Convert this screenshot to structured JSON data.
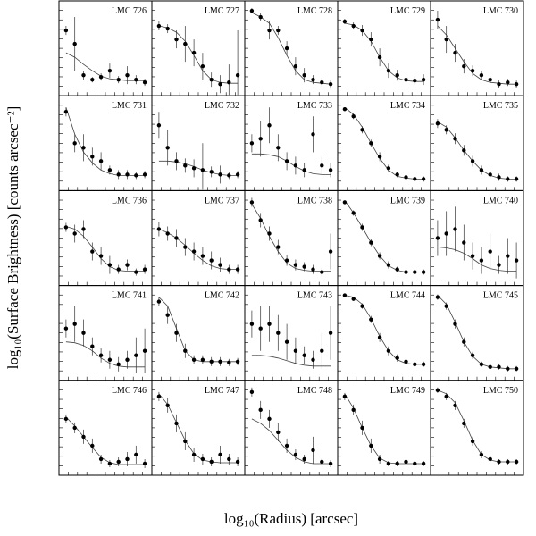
{
  "chart_data": {
    "type": "scatter",
    "xlabel": "log₁₀(Radius) [arcsec]",
    "ylabel": "log₁₀(Surface Brightness) [counts arcsec⁻²]",
    "x": [
      0.05,
      0.15,
      0.25,
      0.35,
      0.45,
      0.55,
      0.65,
      0.75,
      0.85,
      0.95
    ],
    "xlim": [
      0,
      1
    ],
    "ylim": [
      0,
      1
    ],
    "panels": [
      {
        "title": "LMC 726",
        "values": [
          0.7,
          0.55,
          0.2,
          0.15,
          0.18,
          0.25,
          0.15,
          0.2,
          0.15,
          0.12
        ],
        "errors": [
          0.05,
          0.3,
          0.05,
          0.03,
          0.04,
          0.08,
          0.04,
          0.1,
          0.05,
          0.04
        ],
        "fit": [
          0.45,
          0.4,
          0.32,
          0.25,
          0.19,
          0.16,
          0.15,
          0.14,
          0.14,
          0.14
        ]
      },
      {
        "title": "LMC 727",
        "values": [
          0.75,
          0.72,
          0.6,
          0.55,
          0.45,
          0.3,
          0.15,
          0.1,
          0.12,
          0.2
        ],
        "errors": [
          0.05,
          0.05,
          0.1,
          0.2,
          0.15,
          0.15,
          0.08,
          0.1,
          0.2,
          0.5
        ],
        "fit": [
          0.75,
          0.73,
          0.68,
          0.58,
          0.42,
          0.25,
          0.15,
          0.12,
          0.11,
          0.11
        ]
      },
      {
        "title": "LMC 728",
        "values": [
          0.92,
          0.85,
          0.7,
          0.7,
          0.5,
          0.3,
          0.2,
          0.15,
          0.12,
          0.1
        ],
        "errors": [
          0.03,
          0.05,
          0.1,
          0.05,
          0.08,
          0.1,
          0.08,
          0.05,
          0.05,
          0.05
        ],
        "fit": [
          0.9,
          0.85,
          0.78,
          0.62,
          0.42,
          0.25,
          0.15,
          0.12,
          0.11,
          0.1
        ]
      },
      {
        "title": "LMC 729",
        "values": [
          0.8,
          0.75,
          0.7,
          0.6,
          0.4,
          0.25,
          0.2,
          0.15,
          0.14,
          0.15
        ],
        "errors": [
          0.03,
          0.04,
          0.06,
          0.08,
          0.1,
          0.08,
          0.06,
          0.05,
          0.05,
          0.06
        ],
        "fit": [
          0.78,
          0.76,
          0.7,
          0.58,
          0.4,
          0.25,
          0.17,
          0.14,
          0.13,
          0.13
        ]
      },
      {
        "title": "LMC 730",
        "values": [
          0.82,
          0.6,
          0.45,
          0.3,
          0.25,
          0.2,
          0.15,
          0.1,
          0.12,
          0.1
        ],
        "errors": [
          0.1,
          0.15,
          0.1,
          0.08,
          0.06,
          0.05,
          0.04,
          0.04,
          0.04,
          0.04
        ],
        "fit": [
          0.75,
          0.65,
          0.5,
          0.35,
          0.22,
          0.15,
          0.12,
          0.11,
          0.1,
          0.1
        ]
      },
      {
        "title": "LMC 731",
        "values": [
          0.85,
          0.5,
          0.45,
          0.35,
          0.3,
          0.2,
          0.15,
          0.15,
          0.14,
          0.15
        ],
        "errors": [
          0.05,
          0.1,
          0.15,
          0.1,
          0.1,
          0.05,
          0.05,
          0.05,
          0.04,
          0.04
        ],
        "fit": [
          0.9,
          0.6,
          0.4,
          0.28,
          0.2,
          0.16,
          0.14,
          0.14,
          0.14,
          0.14
        ]
      },
      {
        "title": "LMC 732",
        "values": [
          0.7,
          0.45,
          0.3,
          0.25,
          0.22,
          0.2,
          0.18,
          0.15,
          0.14,
          0.15
        ],
        "errors": [
          0.15,
          0.2,
          0.1,
          0.08,
          0.1,
          0.3,
          0.06,
          0.1,
          0.04,
          0.04
        ],
        "fit": [
          0.3,
          0.3,
          0.29,
          0.27,
          0.24,
          0.2,
          0.17,
          0.15,
          0.14,
          0.14
        ]
      },
      {
        "title": "LMC 733",
        "values": [
          0.5,
          0.55,
          0.7,
          0.45,
          0.3,
          0.25,
          0.2,
          0.6,
          0.25,
          0.2
        ],
        "errors": [
          0.1,
          0.2,
          0.2,
          0.15,
          0.1,
          0.1,
          0.08,
          0.2,
          0.1,
          0.08
        ],
        "fit": [
          0.38,
          0.38,
          0.37,
          0.35,
          0.3,
          0.24,
          0.19,
          0.16,
          0.15,
          0.15
        ]
      },
      {
        "title": "LMC 734",
        "values": [
          0.88,
          0.8,
          0.65,
          0.5,
          0.35,
          0.22,
          0.15,
          0.12,
          0.1,
          0.1
        ],
        "errors": [
          0.02,
          0.03,
          0.04,
          0.04,
          0.05,
          0.04,
          0.03,
          0.03,
          0.03,
          0.03
        ],
        "fit": [
          0.9,
          0.82,
          0.68,
          0.5,
          0.33,
          0.2,
          0.13,
          0.11,
          0.1,
          0.1
        ]
      },
      {
        "title": "LMC 735",
        "values": [
          0.72,
          0.65,
          0.55,
          0.42,
          0.3,
          0.2,
          0.15,
          0.12,
          0.1,
          0.1
        ],
        "errors": [
          0.05,
          0.05,
          0.06,
          0.06,
          0.06,
          0.05,
          0.04,
          0.04,
          0.03,
          0.03
        ],
        "fit": [
          0.74,
          0.68,
          0.56,
          0.42,
          0.3,
          0.2,
          0.14,
          0.11,
          0.1,
          0.1
        ]
      },
      {
        "title": "LMC 736",
        "values": [
          0.62,
          0.55,
          0.6,
          0.35,
          0.3,
          0.2,
          0.15,
          0.2,
          0.12,
          0.15
        ],
        "errors": [
          0.05,
          0.1,
          0.1,
          0.1,
          0.1,
          0.1,
          0.05,
          0.06,
          0.04,
          0.05
        ],
        "fit": [
          0.63,
          0.6,
          0.52,
          0.4,
          0.27,
          0.18,
          0.14,
          0.13,
          0.13,
          0.13
        ]
      },
      {
        "title": "LMC 737",
        "values": [
          0.6,
          0.55,
          0.5,
          0.4,
          0.35,
          0.3,
          0.25,
          0.2,
          0.15,
          0.15
        ],
        "errors": [
          0.08,
          0.08,
          0.1,
          0.1,
          0.1,
          0.1,
          0.1,
          0.08,
          0.05,
          0.05
        ],
        "fit": [
          0.6,
          0.56,
          0.5,
          0.42,
          0.33,
          0.25,
          0.19,
          0.16,
          0.15,
          0.15
        ]
      },
      {
        "title": "LMC 738",
        "values": [
          0.9,
          0.7,
          0.55,
          0.4,
          0.25,
          0.2,
          0.18,
          0.15,
          0.12,
          0.35
        ],
        "errors": [
          0.05,
          0.08,
          0.08,
          0.08,
          0.06,
          0.06,
          0.05,
          0.05,
          0.05,
          0.2
        ],
        "fit": [
          0.88,
          0.72,
          0.52,
          0.35,
          0.22,
          0.16,
          0.14,
          0.13,
          0.13,
          0.13
        ]
      },
      {
        "title": "LMC 739",
        "values": [
          0.9,
          0.78,
          0.62,
          0.45,
          0.3,
          0.2,
          0.15,
          0.12,
          0.12,
          0.12
        ],
        "errors": [
          0.02,
          0.03,
          0.04,
          0.04,
          0.04,
          0.04,
          0.03,
          0.03,
          0.03,
          0.03
        ],
        "fit": [
          0.92,
          0.78,
          0.62,
          0.45,
          0.3,
          0.19,
          0.14,
          0.12,
          0.12,
          0.12
        ]
      },
      {
        "title": "LMC 740",
        "values": [
          0.5,
          0.55,
          0.6,
          0.45,
          0.3,
          0.25,
          0.35,
          0.2,
          0.3,
          0.25
        ],
        "errors": [
          0.2,
          0.25,
          0.25,
          0.2,
          0.15,
          0.15,
          0.2,
          0.1,
          0.2,
          0.2
        ],
        "fit": [
          0.4,
          0.39,
          0.37,
          0.33,
          0.27,
          0.2,
          0.16,
          0.14,
          0.13,
          0.13
        ]
      },
      {
        "title": "LMC 741",
        "values": [
          0.55,
          0.6,
          0.5,
          0.35,
          0.25,
          0.2,
          0.15,
          0.2,
          0.25,
          0.3
        ],
        "errors": [
          0.1,
          0.2,
          0.15,
          0.1,
          0.08,
          0.1,
          0.08,
          0.1,
          0.2,
          0.25
        ],
        "fit": [
          0.4,
          0.39,
          0.36,
          0.3,
          0.22,
          0.16,
          0.13,
          0.12,
          0.12,
          0.12
        ]
      },
      {
        "title": "LMC 742",
        "values": [
          0.85,
          0.7,
          0.5,
          0.3,
          0.2,
          0.2,
          0.18,
          0.18,
          0.17,
          0.18
        ],
        "errors": [
          0.05,
          0.1,
          0.1,
          0.08,
          0.05,
          0.05,
          0.05,
          0.05,
          0.04,
          0.04
        ],
        "fit": [
          0.9,
          0.8,
          0.55,
          0.3,
          0.2,
          0.18,
          0.18,
          0.18,
          0.18,
          0.18
        ]
      },
      {
        "title": "LMC 743",
        "values": [
          0.6,
          0.55,
          0.6,
          0.5,
          0.4,
          0.3,
          0.25,
          0.2,
          0.3,
          0.5
        ],
        "errors": [
          0.15,
          0.25,
          0.2,
          0.2,
          0.2,
          0.15,
          0.1,
          0.1,
          0.2,
          0.3
        ],
        "fit": [
          0.25,
          0.25,
          0.24,
          0.22,
          0.19,
          0.16,
          0.14,
          0.13,
          0.13,
          0.13
        ]
      },
      {
        "title": "LMC 744",
        "values": [
          0.92,
          0.88,
          0.8,
          0.65,
          0.45,
          0.3,
          0.22,
          0.18,
          0.15,
          0.15
        ],
        "errors": [
          0.02,
          0.02,
          0.03,
          0.04,
          0.05,
          0.05,
          0.04,
          0.03,
          0.03,
          0.03
        ],
        "fit": [
          0.92,
          0.9,
          0.82,
          0.66,
          0.46,
          0.3,
          0.2,
          0.16,
          0.15,
          0.15
        ]
      },
      {
        "title": "LMC 745",
        "values": [
          0.9,
          0.8,
          0.6,
          0.4,
          0.25,
          0.15,
          0.12,
          0.12,
          0.1,
          0.1
        ],
        "errors": [
          0.03,
          0.04,
          0.05,
          0.05,
          0.04,
          0.03,
          0.03,
          0.03,
          0.03,
          0.03
        ],
        "fit": [
          0.92,
          0.82,
          0.62,
          0.4,
          0.24,
          0.15,
          0.12,
          0.11,
          0.1,
          0.1
        ]
      },
      {
        "title": "LMC 746",
        "values": [
          0.6,
          0.5,
          0.4,
          0.3,
          0.15,
          0.1,
          0.12,
          0.15,
          0.2,
          0.1
        ],
        "errors": [
          0.05,
          0.06,
          0.08,
          0.08,
          0.05,
          0.04,
          0.05,
          0.08,
          0.1,
          0.05
        ],
        "fit": [
          0.62,
          0.52,
          0.4,
          0.28,
          0.17,
          0.11,
          0.09,
          0.09,
          0.09,
          0.09
        ]
      },
      {
        "title": "LMC 747",
        "values": [
          0.85,
          0.75,
          0.55,
          0.35,
          0.2,
          0.15,
          0.12,
          0.2,
          0.15,
          0.12
        ],
        "errors": [
          0.05,
          0.08,
          0.1,
          0.1,
          0.08,
          0.06,
          0.05,
          0.1,
          0.06,
          0.05
        ],
        "fit": [
          0.88,
          0.76,
          0.56,
          0.36,
          0.21,
          0.14,
          0.12,
          0.11,
          0.11,
          0.11
        ]
      },
      {
        "title": "LMC 748",
        "values": [
          0.9,
          0.7,
          0.6,
          0.45,
          0.3,
          0.2,
          0.15,
          0.25,
          0.12,
          0.1
        ],
        "errors": [
          0.05,
          0.1,
          0.1,
          0.1,
          0.08,
          0.06,
          0.05,
          0.15,
          0.04,
          0.04
        ],
        "fit": [
          0.6,
          0.55,
          0.47,
          0.36,
          0.25,
          0.17,
          0.12,
          0.1,
          0.1,
          0.1
        ]
      },
      {
        "title": "LMC 749",
        "values": [
          0.85,
          0.7,
          0.5,
          0.3,
          0.15,
          0.1,
          0.1,
          0.12,
          0.1,
          0.1
        ],
        "errors": [
          0.04,
          0.06,
          0.08,
          0.08,
          0.05,
          0.03,
          0.03,
          0.04,
          0.03,
          0.03
        ],
        "fit": [
          0.88,
          0.72,
          0.5,
          0.3,
          0.16,
          0.11,
          0.1,
          0.1,
          0.1,
          0.1
        ]
      },
      {
        "title": "LMC 750",
        "values": [
          0.92,
          0.85,
          0.75,
          0.55,
          0.35,
          0.2,
          0.15,
          0.12,
          0.12,
          0.12
        ],
        "errors": [
          0.03,
          0.04,
          0.05,
          0.05,
          0.05,
          0.04,
          0.03,
          0.03,
          0.03,
          0.03
        ],
        "fit": [
          0.92,
          0.88,
          0.78,
          0.58,
          0.36,
          0.2,
          0.14,
          0.12,
          0.12,
          0.12
        ]
      }
    ]
  }
}
